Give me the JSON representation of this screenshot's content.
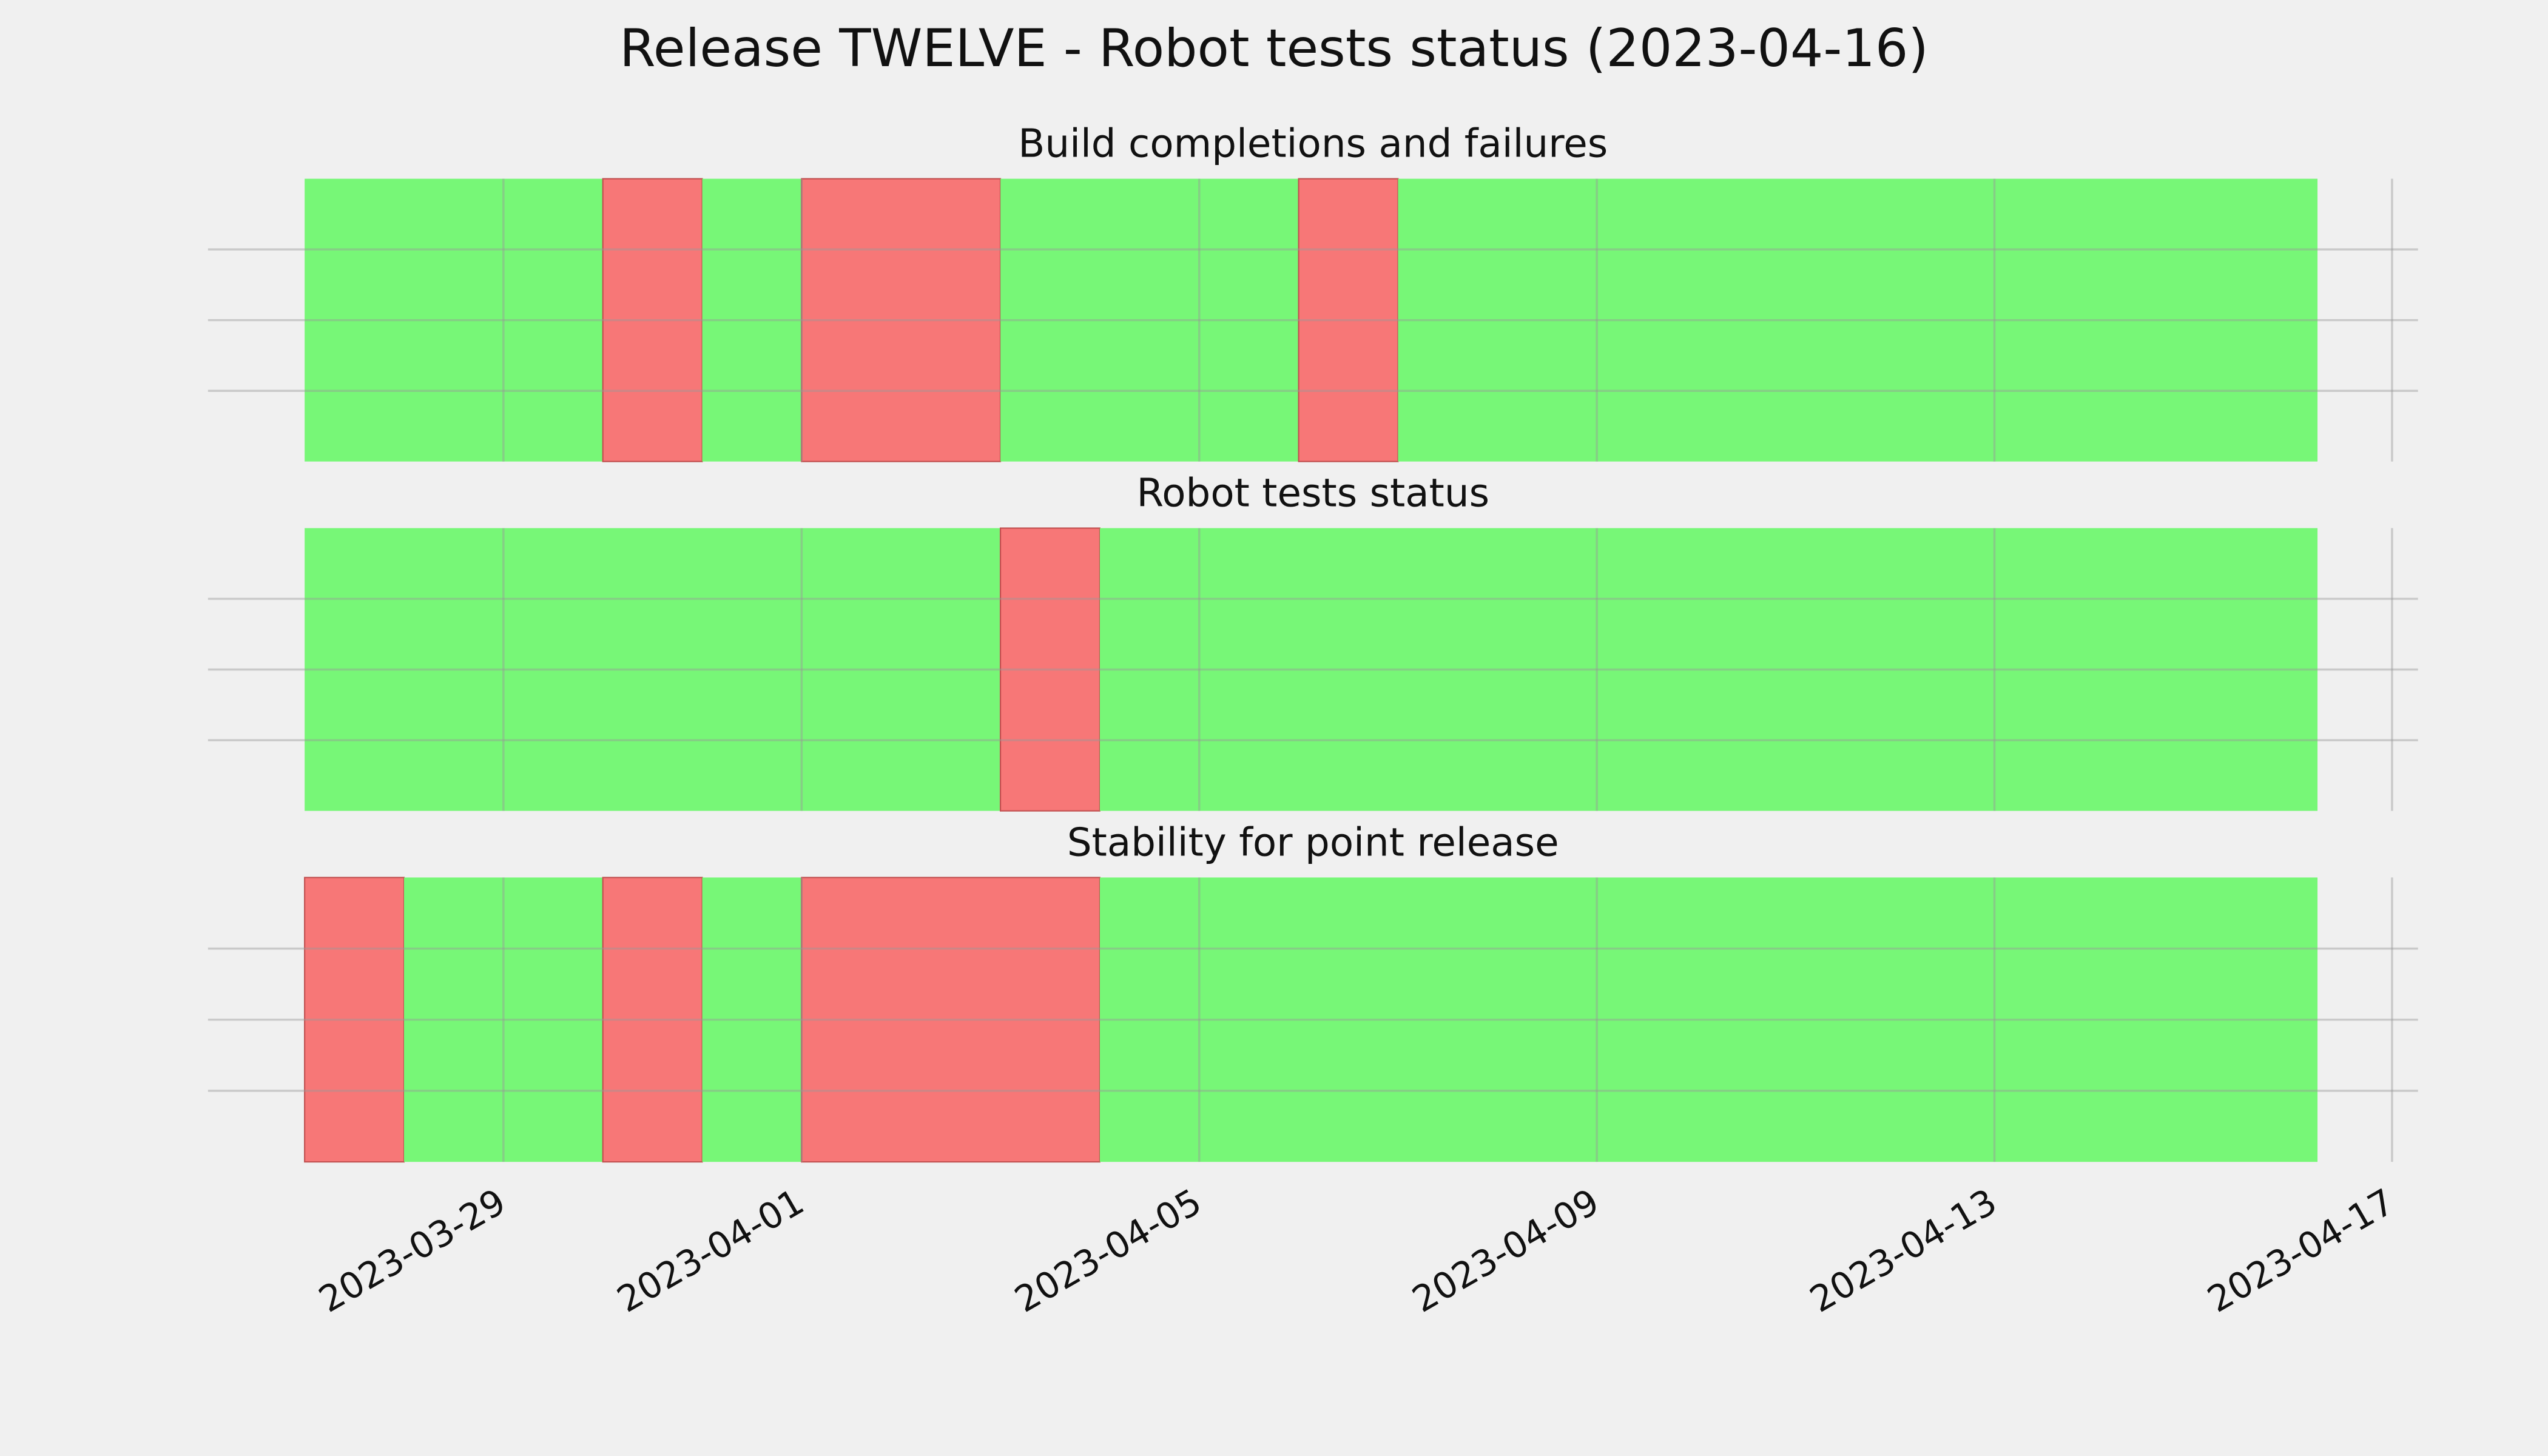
{
  "title": "Release TWELVE - Robot tests status (2023-04-16)",
  "xaxis": {
    "xlim": [
      "2023-03-26T00:40",
      "2023-04-17T06:16"
    ],
    "xticks": [
      "2023-03-29",
      "2023-04-01",
      "2023-04-05",
      "2023-04-09",
      "2023-04-13",
      "2023-04-17"
    ]
  },
  "colors": {
    "pass": "#77f777",
    "fail": "#f77777"
  },
  "chart_data": [
    {
      "type": "timeline",
      "title": "Build completions and failures",
      "ylim": [
        0,
        1
      ],
      "yticks": [
        0.25,
        0.5,
        0.75
      ],
      "ytick_labels": false,
      "grid": true,
      "segments": [
        {
          "start": "2023-03-27",
          "end": "2023-03-30",
          "status": "pass"
        },
        {
          "start": "2023-03-30",
          "end": "2023-03-31",
          "status": "fail"
        },
        {
          "start": "2023-03-31",
          "end": "2023-04-01",
          "status": "pass"
        },
        {
          "start": "2023-04-01",
          "end": "2023-04-03",
          "status": "fail"
        },
        {
          "start": "2023-04-03",
          "end": "2023-04-06",
          "status": "pass"
        },
        {
          "start": "2023-04-06",
          "end": "2023-04-07",
          "status": "fail"
        },
        {
          "start": "2023-04-07",
          "end": "2023-04-16T06:00",
          "status": "pass"
        }
      ]
    },
    {
      "type": "timeline",
      "title": "Robot tests status",
      "ylim": [
        0,
        1
      ],
      "yticks": [
        0.25,
        0.5,
        0.75
      ],
      "ytick_labels": false,
      "grid": true,
      "segments": [
        {
          "start": "2023-03-27",
          "end": "2023-04-03",
          "status": "pass"
        },
        {
          "start": "2023-04-03",
          "end": "2023-04-04",
          "status": "fail"
        },
        {
          "start": "2023-04-04",
          "end": "2023-04-16T06:00",
          "status": "pass"
        }
      ]
    },
    {
      "type": "timeline",
      "title": "Stability for point release",
      "ylim": [
        0,
        1
      ],
      "yticks": [
        0.25,
        0.5,
        0.75
      ],
      "ytick_labels": false,
      "grid": true,
      "segments": [
        {
          "start": "2023-03-27",
          "end": "2023-03-28",
          "status": "fail"
        },
        {
          "start": "2023-03-28",
          "end": "2023-03-30",
          "status": "pass"
        },
        {
          "start": "2023-03-30",
          "end": "2023-03-31",
          "status": "fail"
        },
        {
          "start": "2023-03-31",
          "end": "2023-04-01",
          "status": "pass"
        },
        {
          "start": "2023-04-01",
          "end": "2023-04-04",
          "status": "fail"
        },
        {
          "start": "2023-04-04",
          "end": "2023-04-16T06:00",
          "status": "pass"
        }
      ]
    }
  ]
}
